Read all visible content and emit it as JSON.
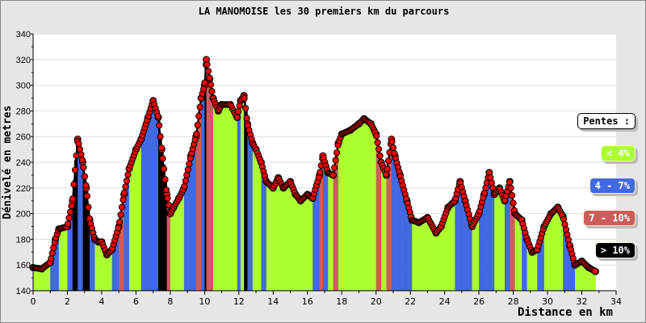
{
  "chart_data": {
    "type": "area",
    "title": "LA MANOMOISE les 30 premiers km du parcours",
    "xlabel": "Distance en km",
    "ylabel": "Dénivelé en metres",
    "xlim": [
      0,
      34
    ],
    "ylim": [
      140,
      340
    ],
    "xticks": [
      "0",
      "2",
      "4",
      "6",
      "8",
      "10",
      "12",
      "14",
      "16",
      "18",
      "20",
      "22",
      "24",
      "26",
      "28",
      "30",
      "32",
      "34"
    ],
    "yticks": [
      "140",
      "160",
      "180",
      "200",
      "220",
      "240",
      "260",
      "280",
      "300",
      "320",
      "340"
    ],
    "grid": true,
    "x": [
      0,
      0.5,
      1.0,
      1.3,
      1.5,
      2.0,
      2.3,
      2.6,
      2.9,
      3.1,
      3.3,
      3.6,
      3.8,
      4.0,
      4.3,
      4.6,
      5.0,
      5.3,
      5.6,
      6.0,
      6.3,
      6.7,
      7.0,
      7.3,
      7.5,
      7.8,
      8.0,
      8.2,
      8.5,
      8.8,
      9.2,
      9.5,
      9.8,
      10.0,
      10.1,
      10.3,
      10.5,
      10.8,
      11.0,
      11.5,
      11.9,
      12.1,
      12.3,
      12.5,
      12.8,
      13.0,
      13.3,
      13.6,
      14.0,
      14.3,
      14.6,
      15.0,
      15.3,
      15.6,
      16.0,
      16.3,
      16.7,
      16.9,
      17.2,
      17.5,
      17.8,
      18.0,
      18.5,
      19.0,
      19.3,
      19.7,
      20.0,
      20.3,
      20.6,
      20.9,
      21.1,
      21.4,
      21.8,
      22.1,
      22.5,
      23.0,
      23.5,
      23.8,
      24.2,
      24.6,
      24.9,
      25.2,
      25.6,
      26.0,
      26.3,
      26.6,
      26.9,
      27.2,
      27.5,
      27.8,
      28.1,
      28.5,
      28.8,
      29.1,
      29.4,
      29.8,
      30.2,
      30.6,
      30.9,
      31.3,
      31.6,
      32.0,
      32.4,
      32.8
    ],
    "y": [
      158,
      157,
      162,
      180,
      188,
      190,
      210,
      258,
      240,
      220,
      195,
      180,
      178,
      178,
      168,
      172,
      190,
      215,
      235,
      250,
      258,
      275,
      288,
      275,
      250,
      215,
      200,
      205,
      212,
      220,
      245,
      260,
      290,
      300,
      320,
      305,
      290,
      280,
      285,
      285,
      275,
      288,
      292,
      270,
      255,
      250,
      240,
      225,
      220,
      228,
      220,
      225,
      215,
      210,
      215,
      212,
      230,
      245,
      232,
      230,
      255,
      262,
      265,
      270,
      274,
      270,
      262,
      240,
      230,
      258,
      245,
      230,
      210,
      195,
      193,
      197,
      185,
      190,
      205,
      210,
      225,
      210,
      190,
      200,
      215,
      232,
      215,
      220,
      210,
      225,
      200,
      195,
      180,
      170,
      172,
      190,
      200,
      205,
      198,
      175,
      160,
      163,
      158,
      155
    ],
    "legend": {
      "title": "Pentes :",
      "position": "right",
      "entries": [
        {
          "label": "< 4%",
          "color": "#adff2f"
        },
        {
          "label": "4 - 7%",
          "color": "#4169e1"
        },
        {
          "label": "7 - 10%",
          "color": "#cd5c5c"
        },
        {
          "label": "> 10%",
          "color": "#000000"
        }
      ]
    },
    "marker_color": "#ff0000"
  }
}
